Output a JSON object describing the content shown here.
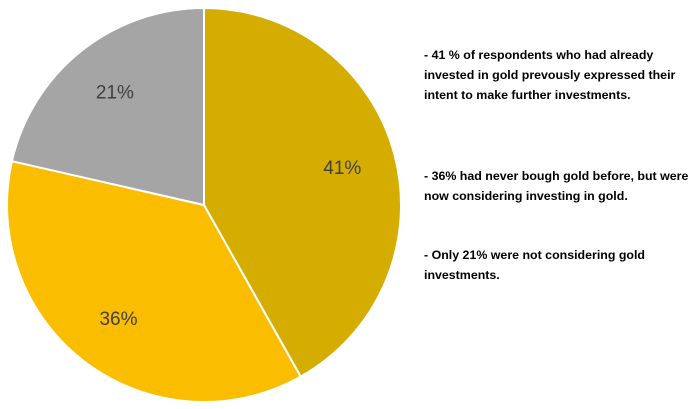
{
  "chart_data": {
    "type": "pie",
    "title": "",
    "start": "top",
    "direction": "clockwise",
    "legend": "none",
    "slices": [
      {
        "label": "41%",
        "value": 41,
        "color": "#d4ad00"
      },
      {
        "label": "36%",
        "value": 36,
        "color": "#fbbd00"
      },
      {
        "label": "21%",
        "value": 21,
        "color": "#a5a5a5"
      }
    ],
    "border_color": "#ffffff"
  },
  "notes": [
    "- 41 % of respondents who had already invested in gold prevously expressed their intent to make further investments.",
    "- 36% had never bough gold before, but were now considering investing in gold.",
    "- Only 21% were not considering gold investments."
  ]
}
